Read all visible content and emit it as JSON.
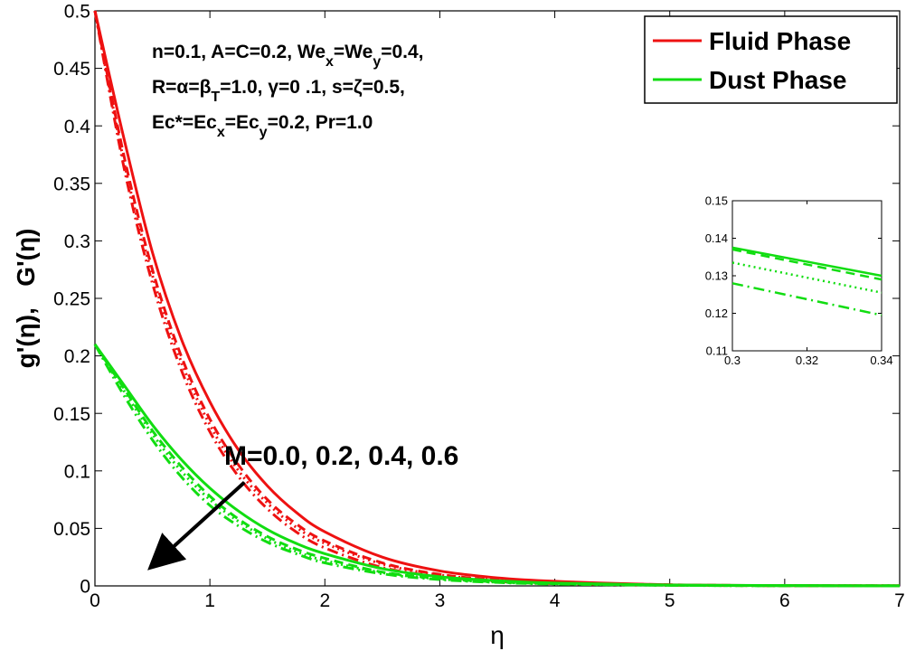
{
  "chart_data": [
    {
      "type": "line",
      "xlabel": "η",
      "ylabel": "g'(η),   G'(η)",
      "xlim": [
        0,
        7
      ],
      "ylim": [
        0,
        0.5
      ],
      "xticks": [
        "0",
        "1",
        "2",
        "3",
        "4",
        "5",
        "6",
        "7"
      ],
      "yticks": [
        "0",
        "0.05",
        "0.1",
        "0.15",
        "0.2",
        "0.25",
        "0.3",
        "0.35",
        "0.4",
        "0.45",
        "0.5"
      ],
      "grid": false,
      "legend": {
        "placement": "top-right",
        "entries": [
          {
            "label": "Fluid Phase",
            "color": "#ee1111"
          },
          {
            "label": "Dust Phase",
            "color": "#11dd11"
          }
        ]
      },
      "annotations": {
        "params_line1": "n=0.1, A=C=0.2, We",
        "params_line1_sub1": "x",
        "params_line1_mid": "=We",
        "params_line1_sub2": "y",
        "params_line1_end": "=0.4,",
        "params_line2": "R=α=β",
        "params_line2_sub": "T",
        "params_line2_end": "=1.0, γ=0 .1, s=ζ=0.5,",
        "params_line3": "Ec*=Ec",
        "params_line3_sub1": "x",
        "params_line3_mid": "=Ec",
        "params_line3_sub2": "y",
        "params_line3_end": "=0.2, Pr=1.0",
        "arrow_label": "M=0.0, 0.2, 0.4, 0.6",
        "arrow_from": [
          1.3,
          0.09
        ],
        "arrow_to": [
          0.55,
          0.022
        ]
      },
      "line_styles": [
        "solid",
        "dashed",
        "dotted",
        "dashdot"
      ],
      "M_values": [
        0.0,
        0.2,
        0.4,
        0.6
      ],
      "x": [
        0,
        0.25,
        0.5,
        0.75,
        1,
        1.25,
        1.5,
        1.75,
        2,
        2.5,
        3,
        3.5,
        4,
        5,
        6,
        7
      ],
      "series": [
        {
          "name": "Fluid Phase",
          "phase": "fluid",
          "M": 0.0,
          "style": "solid",
          "values": [
            0.5,
            0.39,
            0.29,
            0.215,
            0.16,
            0.118,
            0.087,
            0.064,
            0.047,
            0.025,
            0.013,
            0.007,
            0.004,
            0.001,
            0.0003,
            0.0001
          ]
        },
        {
          "phase": "fluid",
          "M": 0.2,
          "style": "dashed",
          "values": [
            0.5,
            0.375,
            0.275,
            0.2,
            0.145,
            0.105,
            0.075,
            0.054,
            0.039,
            0.02,
            0.01,
            0.005,
            0.003,
            0.001,
            0.0002,
            0.0001
          ]
        },
        {
          "phase": "fluid",
          "M": 0.4,
          "style": "dotted",
          "values": [
            0.5,
            0.37,
            0.27,
            0.195,
            0.14,
            0.1,
            0.072,
            0.051,
            0.037,
            0.019,
            0.0095,
            0.005,
            0.0025,
            0.0007,
            0.0002,
            0.0001
          ]
        },
        {
          "phase": "fluid",
          "M": 0.6,
          "style": "dashdot",
          "values": [
            0.5,
            0.365,
            0.263,
            0.188,
            0.134,
            0.095,
            0.067,
            0.047,
            0.033,
            0.016,
            0.008,
            0.004,
            0.002,
            0.0006,
            0.0002,
            0.0001
          ]
        },
        {
          "name": "Dust Phase",
          "phase": "dust",
          "M": 0.0,
          "style": "solid",
          "values": [
            0.21,
            0.175,
            0.14,
            0.11,
            0.085,
            0.065,
            0.049,
            0.037,
            0.028,
            0.015,
            0.008,
            0.0045,
            0.0025,
            0.0008,
            0.0003,
            0.0001
          ]
        },
        {
          "phase": "dust",
          "M": 0.2,
          "style": "dashed",
          "values": [
            0.21,
            0.172,
            0.135,
            0.104,
            0.078,
            0.058,
            0.043,
            0.032,
            0.024,
            0.012,
            0.0065,
            0.0035,
            0.002,
            0.0006,
            0.0002,
            0.0001
          ]
        },
        {
          "phase": "dust",
          "M": 0.4,
          "style": "dotted",
          "values": [
            0.21,
            0.17,
            0.132,
            0.1,
            0.075,
            0.056,
            0.041,
            0.03,
            0.022,
            0.0115,
            0.006,
            0.0032,
            0.0018,
            0.0005,
            0.0002,
            0.0001
          ]
        },
        {
          "phase": "dust",
          "M": 0.6,
          "style": "dashdot",
          "values": [
            0.21,
            0.166,
            0.127,
            0.095,
            0.07,
            0.052,
            0.038,
            0.028,
            0.02,
            0.0105,
            0.0055,
            0.003,
            0.0016,
            0.0005,
            0.0002,
            0.0001
          ]
        }
      ]
    },
    {
      "type": "line",
      "role": "inset",
      "xlim": [
        0.3,
        0.34
      ],
      "ylim": [
        0.11,
        0.15
      ],
      "xticks": [
        "0.3",
        "0.32",
        "0.34"
      ],
      "yticks": [
        "0.11",
        "0.12",
        "0.13",
        "0.14",
        "0.15"
      ],
      "x": [
        0.3,
        0.34
      ],
      "series": [
        {
          "phase": "dust",
          "M": 0.0,
          "style": "solid",
          "values": [
            0.1375,
            0.13
          ]
        },
        {
          "phase": "dust",
          "M": 0.2,
          "style": "dashed",
          "values": [
            0.137,
            0.129
          ]
        },
        {
          "phase": "dust",
          "M": 0.4,
          "style": "dotted",
          "values": [
            0.1335,
            0.1255
          ]
        },
        {
          "phase": "dust",
          "M": 0.6,
          "style": "dashdot",
          "values": [
            0.128,
            0.1195
          ]
        }
      ]
    }
  ]
}
